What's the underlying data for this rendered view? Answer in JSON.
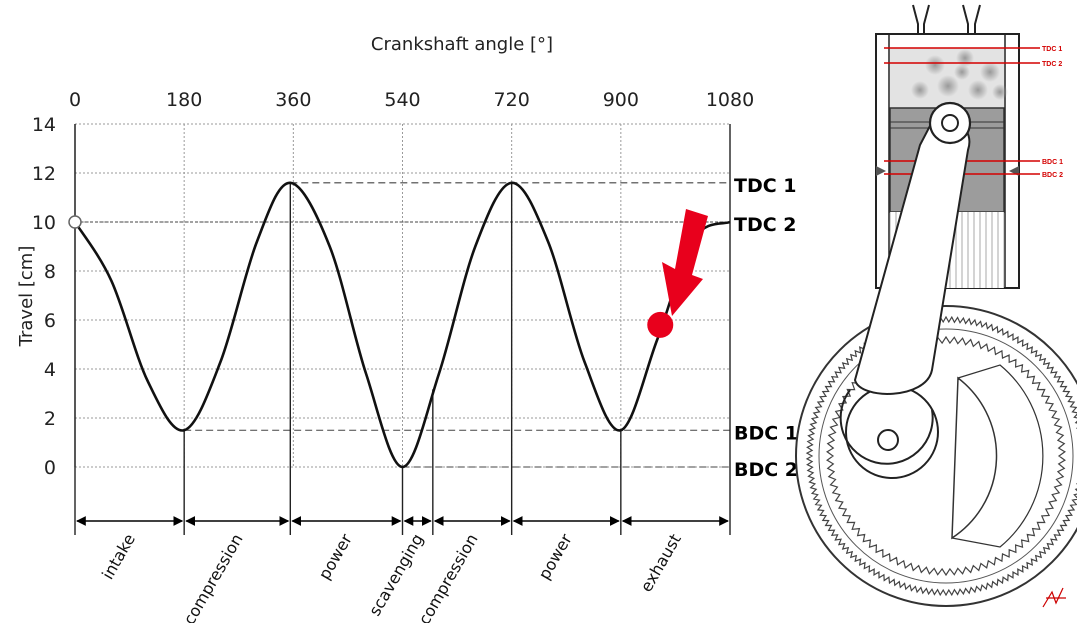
{
  "chart_data": {
    "type": "line",
    "title": "",
    "top_axis_label": "Crankshaft angle [°]",
    "ylabel": "Travel [cm]",
    "x_ticks": [
      0,
      180,
      360,
      540,
      720,
      900,
      1080
    ],
    "y_ticks": [
      0,
      2,
      4,
      6,
      8,
      10,
      12,
      14
    ],
    "xlim": [
      0,
      1080
    ],
    "ylim": [
      0,
      14
    ],
    "grid": true,
    "series": [
      {
        "x": [
          0,
          60,
          120,
          180,
          240,
          300,
          355,
          420,
          480,
          540,
          600,
          660,
          720,
          780,
          840,
          900,
          960,
          1020,
          1080
        ],
        "y": [
          10,
          7.6,
          3.5,
          1.5,
          4.3,
          9.2,
          11.6,
          9.0,
          3.8,
          0,
          3.8,
          9.0,
          11.6,
          9.2,
          4.3,
          1.5,
          5.2,
          9.3,
          10
        ]
      }
    ],
    "reference_lines": [
      {
        "label": "TDC 1",
        "y": 11.6
      },
      {
        "label": "TDC 2",
        "y": 10
      },
      {
        "label": "BDC 1",
        "y": 1.5
      },
      {
        "label": "BDC 2",
        "y": 0
      }
    ],
    "phase_boundaries": [
      0,
      180,
      355,
      540,
      590,
      720,
      900,
      1080
    ],
    "phases": [
      "intake",
      "compression",
      "power",
      "scavenging",
      "compression",
      "power",
      "exhaust"
    ],
    "current_point": {
      "x": 965,
      "y": 5.8
    }
  },
  "diagram": {
    "cylinder_labels": [
      "TDC 1",
      "TDC 2",
      "BDC 1",
      "BDC 2"
    ],
    "colors": {
      "highlight": "#e8001c",
      "label_red": "#d40000",
      "curve": "#111111"
    }
  }
}
